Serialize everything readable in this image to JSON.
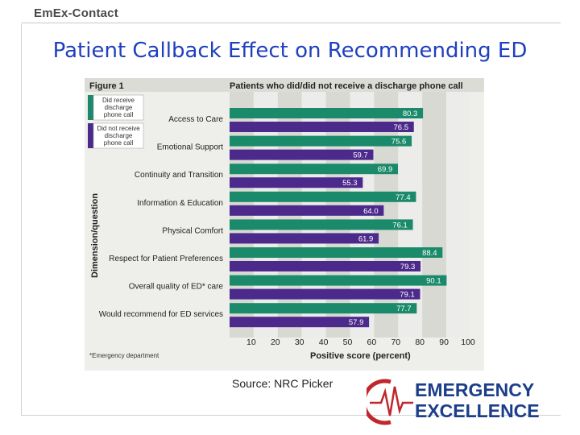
{
  "header": {
    "brand": "EmEx-Contact"
  },
  "slide": {
    "title": "Patient Callback Effect on Recommending ED"
  },
  "figure": {
    "label": "Figure 1",
    "footnote": "*Emergency department"
  },
  "source": "Source: NRC Picker",
  "logo": {
    "line1": "EMERGENCY",
    "line2": "EXCELLENCE"
  },
  "colors": {
    "received": "#1a8a6a",
    "not_received": "#4b2a8c",
    "title": "#1f3fbf"
  },
  "chart_data": {
    "type": "bar",
    "orientation": "horizontal",
    "title": "Patients who did/did not receive a discharge phone call",
    "xlabel": "Positive score (percent)",
    "ylabel": "Dimension/question",
    "xlim": [
      0,
      100
    ],
    "xticks": [
      10,
      20,
      30,
      40,
      50,
      60,
      70,
      80,
      90,
      100
    ],
    "categories": [
      "Access to Care",
      "Emotional Support",
      "Continuity and Transition",
      "Information & Education",
      "Physical Comfort",
      "Respect for Patient Preferences",
      "Overall quality of ED* care",
      "Would recommend for ED services"
    ],
    "series": [
      {
        "name": "Did receive discharge phone call",
        "name_lines": [
          "Did receive",
          "discharge",
          "phone call"
        ],
        "color": "#1a8a6a",
        "values": [
          80.3,
          75.6,
          69.9,
          77.4,
          76.1,
          88.4,
          90.1,
          77.7
        ]
      },
      {
        "name": "Did not receive discharge phone call",
        "name_lines": [
          "Did not receive",
          "discharge",
          "phone call"
        ],
        "color": "#4b2a8c",
        "values": [
          76.5,
          59.7,
          55.3,
          64.0,
          61.9,
          79.3,
          79.1,
          57.9
        ]
      }
    ],
    "legend": "top-left",
    "grid": "alternating vertical bands"
  }
}
